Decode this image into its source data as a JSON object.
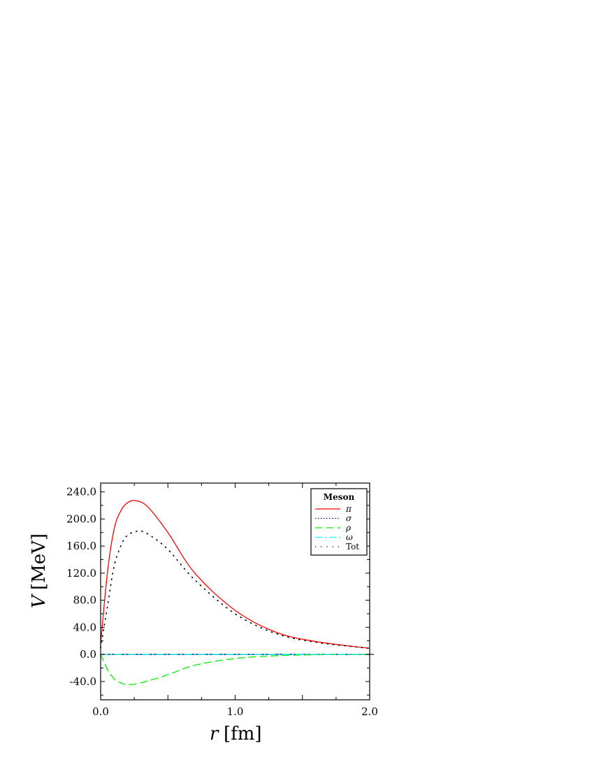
{
  "chart_data": {
    "type": "line",
    "xlabel_var": "r",
    "xlabel_unit": "[fm]",
    "ylabel_var": "V",
    "ylabel_unit": "[MeV]",
    "xlim": [
      0,
      2.0
    ],
    "ylim": [
      -67,
      253
    ],
    "x_ticks": [
      "0.0",
      "1.0",
      "2.0"
    ],
    "x_tick_values": [
      0,
      1,
      2
    ],
    "y_ticks": [
      "-40.0",
      "0.0",
      "40.0",
      "80.0",
      "120.0",
      "160.0",
      "200.0",
      "240.0"
    ],
    "y_tick_values": [
      -40,
      0,
      40,
      80,
      120,
      160,
      200,
      240
    ],
    "grid": false,
    "legend": {
      "title": "Meson",
      "placement": "top-right"
    },
    "series": [
      {
        "name": "π",
        "color": "#ff0000",
        "style": "solid",
        "x": [
          0,
          0.05,
          0.1,
          0.15,
          0.2,
          0.26,
          0.35,
          0.5,
          0.7,
          1.0,
          1.3,
          1.6,
          2.0
        ],
        "y": [
          15,
          120,
          185,
          212,
          224,
          227,
          218,
          180,
          120,
          65,
          33,
          19,
          9
        ]
      },
      {
        "name": "σ",
        "color": "#0000ff",
        "style": "dotted",
        "x": [
          0,
          2.0
        ],
        "y": [
          0,
          0
        ]
      },
      {
        "name": "ρ",
        "color": "#00ee00",
        "style": "dashed",
        "x": [
          0,
          0.05,
          0.1,
          0.15,
          0.2,
          0.3,
          0.5,
          0.7,
          1.0,
          1.3,
          1.6,
          2.0
        ],
        "y": [
          0,
          -22,
          -36,
          -42,
          -44.5,
          -42,
          -30,
          -16,
          -6,
          -2,
          -0.5,
          0
        ]
      },
      {
        "name": "ω",
        "color": "#00ffff",
        "style": "dashdot",
        "x": [
          0,
          2.0
        ],
        "y": [
          0,
          0
        ]
      },
      {
        "name": "Tot",
        "color": "#000000",
        "style": "sparse-dotted",
        "x": [
          0,
          0.05,
          0.1,
          0.15,
          0.2,
          0.28,
          0.35,
          0.5,
          0.7,
          1.0,
          1.3,
          1.6,
          2.0
        ],
        "y": [
          10,
          70,
          130,
          160,
          176,
          182,
          178,
          155,
          110,
          60,
          31,
          18,
          9
        ]
      }
    ]
  }
}
